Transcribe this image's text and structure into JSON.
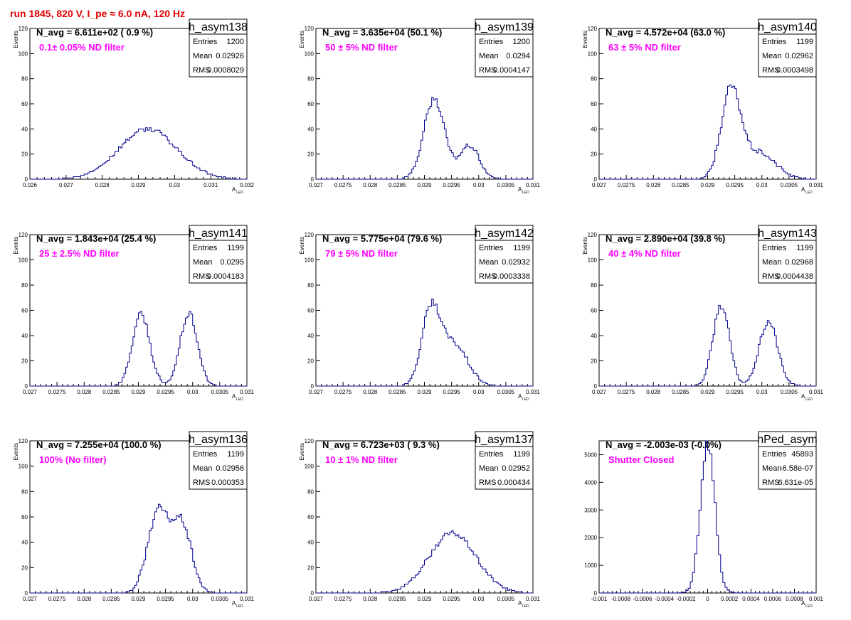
{
  "page_title": "run 1845,   820 V, I_pe ≈ 6.0 nA, 120 Hz",
  "colors": {
    "line": "#00008b",
    "annotation": "#ff00ff",
    "title": "#e00000",
    "axis": "#000000"
  },
  "chart_data": [
    {
      "type": "histogram",
      "name": "h_asym138",
      "nlabel": "N_avg = 6.611e+02 ( 0.9 %)",
      "label": "0.1± 0.05% ND filter",
      "stats": [
        [
          "Entries",
          "1200"
        ],
        [
          "Mean",
          "0.02926"
        ],
        [
          "RMS",
          "0.0008029"
        ]
      ],
      "xlabel": "A",
      "xlabel_sub": "LED",
      "ylabel": "Events",
      "xlim": [
        0.026,
        0.032
      ],
      "ylim": [
        0,
        120
      ],
      "xticks": [
        "0.026",
        "0.027",
        "0.028",
        "0.029",
        "0.03",
        "0.031",
        "0.032"
      ],
      "yticks": [
        "0",
        "20",
        "40",
        "60",
        "80",
        "100",
        "120"
      ],
      "mean": 0.02926,
      "rms": 0.0008029,
      "peak": 40,
      "modes": [
        [
          0.02926,
          0.0008029,
          1
        ]
      ]
    },
    {
      "type": "histogram",
      "name": "h_asym139",
      "nlabel": "N_avg = 3.635e+04 (50.1 %)",
      "label": "50 ± 5% ND filter",
      "stats": [
        [
          "Entries",
          "1200"
        ],
        [
          "Mean",
          "0.0294"
        ],
        [
          "RMS",
          "0.0004147"
        ]
      ],
      "xlabel": "A",
      "xlabel_sub": "LED",
      "ylabel": "Events",
      "xlim": [
        0.027,
        0.031
      ],
      "ylim": [
        0,
        120
      ],
      "xticks": [
        "0.027",
        "0.0275",
        "0.028",
        "0.0285",
        "0.029",
        "0.0295",
        "0.03",
        "0.0305",
        "0.031"
      ],
      "yticks": [
        "0",
        "20",
        "40",
        "60",
        "80",
        "100",
        "120"
      ],
      "mean": 0.0294,
      "rms": 0.0004147,
      "peak": 64,
      "modes": [
        [
          0.02918,
          0.00019,
          1
        ],
        [
          0.02983,
          0.00018,
          0.42
        ]
      ]
    },
    {
      "type": "histogram",
      "name": "h_asym140",
      "nlabel": "N_avg = 4.572e+04 (63.0 %)",
      "label": "63 ± 5% ND filter",
      "stats": [
        [
          "Entries",
          "1199"
        ],
        [
          "Mean",
          "0.02962"
        ],
        [
          "RMS",
          "0.0003498"
        ]
      ],
      "xlabel": "A",
      "xlabel_sub": "LED",
      "ylabel": "Events",
      "xlim": [
        0.027,
        0.031
      ],
      "ylim": [
        0,
        120
      ],
      "xticks": [
        "0.027",
        "0.0275",
        "0.028",
        "0.0285",
        "0.029",
        "0.0295",
        "0.03",
        "0.0305",
        "0.031"
      ],
      "yticks": [
        "0",
        "20",
        "40",
        "60",
        "80",
        "100",
        "120"
      ],
      "mean": 0.02962,
      "rms": 0.0003498,
      "peak": 74,
      "modes": [
        [
          0.02943,
          0.00018,
          1
        ],
        [
          0.02995,
          0.0003,
          0.3
        ]
      ]
    },
    {
      "type": "histogram",
      "name": "h_asym141",
      "nlabel": "N_avg = 1.843e+04 (25.4 %)",
      "label": "25 ± 2.5% ND filter",
      "stats": [
        [
          "Entries",
          "1199"
        ],
        [
          "Mean",
          "0.0295"
        ],
        [
          "RMS",
          "0.0004183"
        ]
      ],
      "xlabel": "A",
      "xlabel_sub": "LED",
      "ylabel": "Events",
      "xlim": [
        0.027,
        0.031
      ],
      "ylim": [
        0,
        120
      ],
      "xticks": [
        "0.027",
        "0.0275",
        "0.028",
        "0.0285",
        "0.029",
        "0.0295",
        "0.03",
        "0.0305",
        "0.031"
      ],
      "yticks": [
        "0",
        "20",
        "40",
        "60",
        "80",
        "100",
        "120"
      ],
      "mean": 0.0295,
      "rms": 0.0004183,
      "peak": 57,
      "modes": [
        [
          0.02905,
          0.00016,
          1
        ],
        [
          0.02993,
          0.00016,
          1
        ]
      ]
    },
    {
      "type": "histogram",
      "name": "h_asym142",
      "nlabel": "N_avg = 5.775e+04 (79.6 %)",
      "label": "79 ± 5% ND filter",
      "stats": [
        [
          "Entries",
          "1199"
        ],
        [
          "Mean",
          "0.02932"
        ],
        [
          "RMS",
          "0.0003338"
        ]
      ],
      "xlabel": "A",
      "xlabel_sub": "LED",
      "ylabel": "Events",
      "xlim": [
        0.027,
        0.031
      ],
      "ylim": [
        0,
        120
      ],
      "xticks": [
        "0.027",
        "0.0275",
        "0.028",
        "0.0285",
        "0.029",
        "0.0295",
        "0.03",
        "0.0305",
        "0.031"
      ],
      "yticks": [
        "0",
        "20",
        "40",
        "60",
        "80",
        "100",
        "120"
      ],
      "mean": 0.02932,
      "rms": 0.0003338,
      "peak": 67,
      "modes": [
        [
          0.02912,
          0.00017,
          1
        ],
        [
          0.02955,
          0.00025,
          0.55
        ]
      ]
    },
    {
      "type": "histogram",
      "name": "h_asym143",
      "nlabel": "N_avg = 2.890e+04 (39.8 %)",
      "label": "40 ± 4% ND filter",
      "stats": [
        [
          "Entries",
          "1199"
        ],
        [
          "Mean",
          "0.02968"
        ],
        [
          "RMS",
          "0.0004438"
        ]
      ],
      "xlabel": "A",
      "xlabel_sub": "LED",
      "ylabel": "Events",
      "xlim": [
        0.027,
        0.031
      ],
      "ylim": [
        0,
        120
      ],
      "xticks": [
        "0.027",
        "0.0275",
        "0.028",
        "0.0285",
        "0.029",
        "0.0295",
        "0.03",
        "0.0305",
        "0.031"
      ],
      "yticks": [
        "0",
        "20",
        "40",
        "60",
        "80",
        "100",
        "120"
      ],
      "mean": 0.02968,
      "rms": 0.0004438,
      "peak": 64,
      "modes": [
        [
          0.02925,
          0.00015,
          1
        ],
        [
          0.03012,
          0.00017,
          0.8
        ]
      ]
    },
    {
      "type": "histogram",
      "name": "h_asym136",
      "nlabel": "N_avg = 7.255e+04 (100.0 %)",
      "label": "100% (No filter)",
      "stats": [
        [
          "Entries",
          "1199"
        ],
        [
          "Mean",
          "0.02956"
        ],
        [
          "RMS",
          "0.000353"
        ]
      ],
      "xlabel": "A",
      "xlabel_sub": "LED",
      "ylabel": "Events",
      "xlim": [
        0.027,
        0.031
      ],
      "ylim": [
        0,
        120
      ],
      "xticks": [
        "0.027",
        "0.0275",
        "0.028",
        "0.0285",
        "0.029",
        "0.0295",
        "0.03",
        "0.0305",
        "0.031"
      ],
      "yticks": [
        "0",
        "20",
        "40",
        "60",
        "80",
        "100",
        "120"
      ],
      "mean": 0.02956,
      "rms": 0.000353,
      "peak": 67,
      "modes": [
        [
          0.02936,
          0.00019,
          1
        ],
        [
          0.0298,
          0.00018,
          0.85
        ]
      ]
    },
    {
      "type": "histogram",
      "name": "h_asym137",
      "nlabel": "N_avg = 6.723e+03 ( 9.3 %)",
      "label": "10 ± 1% ND filter",
      "stats": [
        [
          "Entries",
          "1199"
        ],
        [
          "Mean",
          "0.02952"
        ],
        [
          "RMS",
          "0.000434"
        ]
      ],
      "xlabel": "A",
      "xlabel_sub": "LED",
      "ylabel": "Events",
      "xlim": [
        0.027,
        0.031
      ],
      "ylim": [
        0,
        120
      ],
      "xticks": [
        "0.027",
        "0.0275",
        "0.028",
        "0.0285",
        "0.029",
        "0.0295",
        "0.03",
        "0.0305",
        "0.031"
      ],
      "yticks": [
        "0",
        "20",
        "40",
        "60",
        "80",
        "100",
        "120"
      ],
      "mean": 0.02952,
      "rms": 0.000434,
      "peak": 47,
      "modes": [
        [
          0.02952,
          0.000434,
          1
        ]
      ]
    },
    {
      "type": "histogram",
      "name": "hPed_asym",
      "nlabel": "N_avg = -2.003e-03 (-0.0%)",
      "label": "Shutter Closed",
      "stats": [
        [
          "Entries",
          "45893"
        ],
        [
          "Mean",
          "-6.58e-07"
        ],
        [
          "RMS",
          "6.631e-05"
        ]
      ],
      "xlabel": "A",
      "xlabel_sub": "LED",
      "ylabel": "",
      "xlim": [
        -0.001,
        0.001
      ],
      "ylim": [
        0,
        5500
      ],
      "xticks": [
        "-0.001",
        "-0.0008",
        "-0.0006",
        "-0.0004",
        "-0.0002",
        "0",
        "0.0002",
        "0.0004",
        "0.0006",
        "0.0008",
        "0.001"
      ],
      "yticks": [
        "0",
        "1000",
        "2000",
        "3000",
        "4000",
        "5000"
      ],
      "mean": -6.58e-07,
      "rms": 6.631e-05,
      "peak": 5400,
      "modes": [
        [
          0,
          6.631e-05,
          1
        ]
      ]
    }
  ]
}
